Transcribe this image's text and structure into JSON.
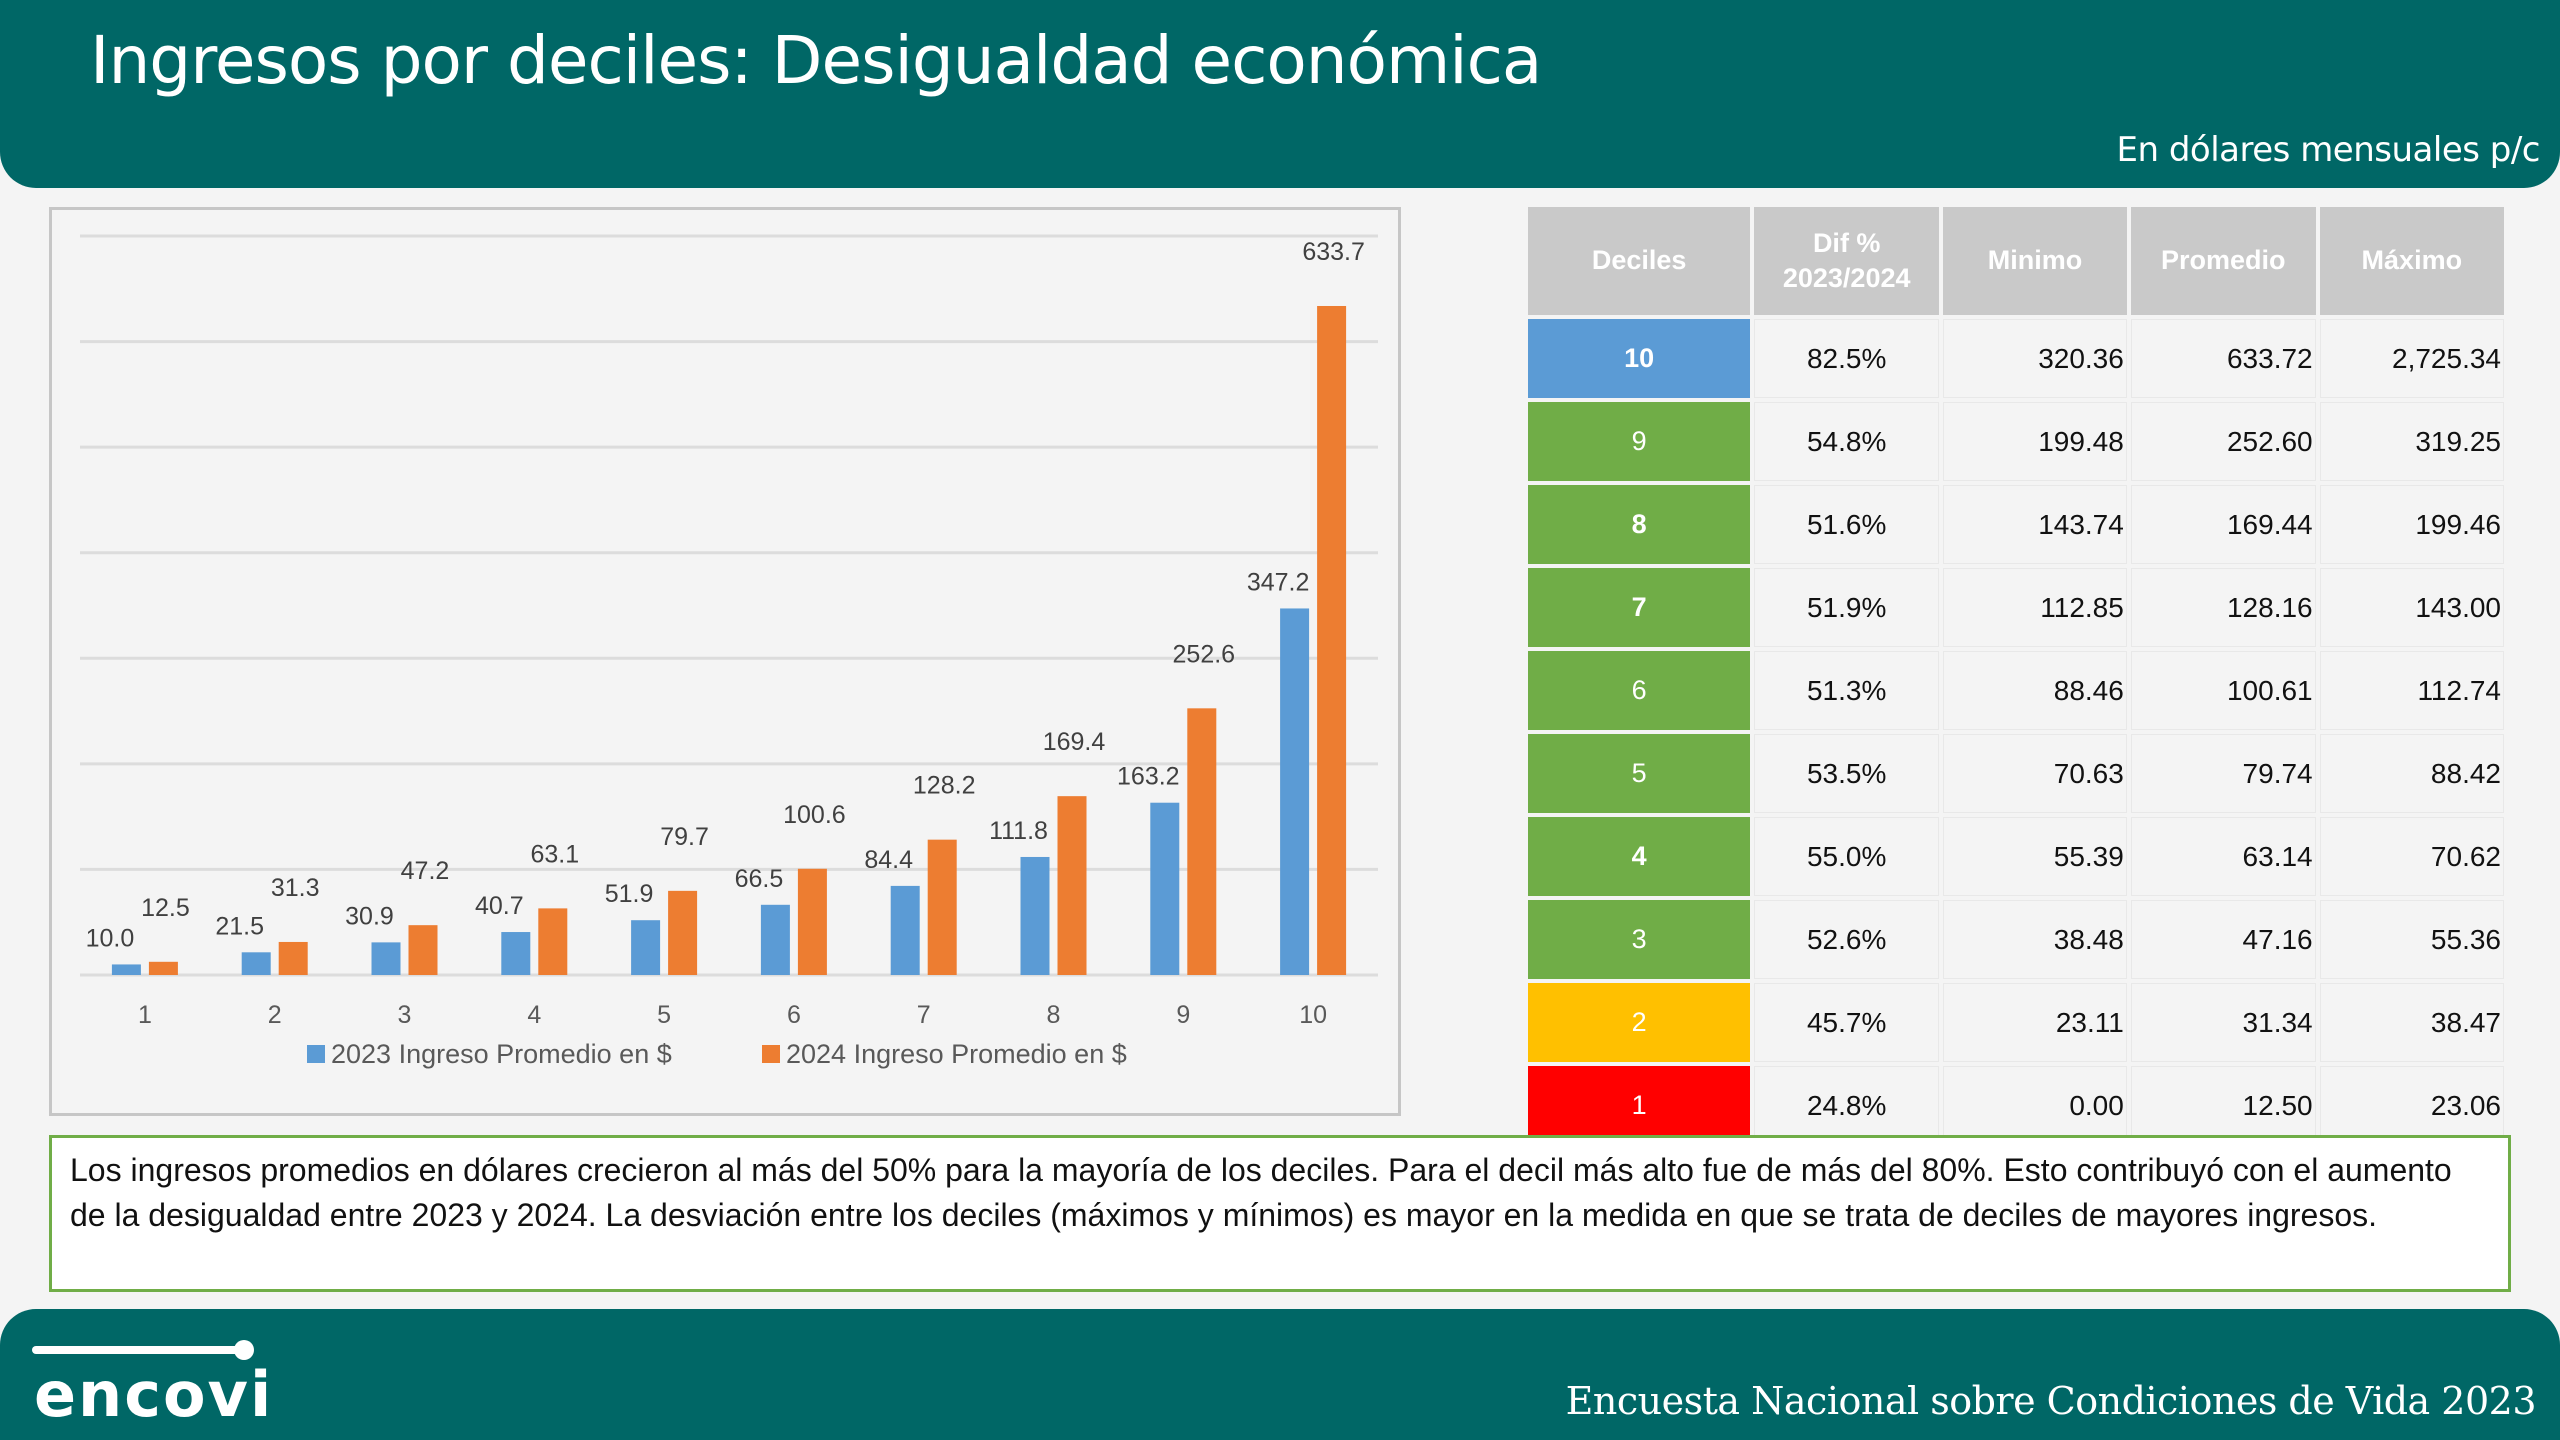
{
  "header": {
    "title": "Ingresos por deciles: Desigualdad económica",
    "subtitle": "En dólares mensuales p/c"
  },
  "colors": {
    "brand_teal": "#006766",
    "series_2023": "#5b9bd5",
    "series_2024": "#ed7d31",
    "decil_top": "#5b9bd5",
    "decil_mid": "#70ad47",
    "decil_low": "#ffc000",
    "decil_bottom": "#ff0000",
    "note_border": "#70ad47"
  },
  "chart_data": {
    "type": "bar",
    "title": "",
    "xlabel": "",
    "ylabel": "",
    "categories": [
      "1",
      "2",
      "3",
      "4",
      "5",
      "6",
      "7",
      "8",
      "9",
      "10"
    ],
    "series": [
      {
        "name": "2023 Ingreso Promedio en $",
        "color": "#5b9bd5",
        "values": [
          10.0,
          21.5,
          30.9,
          40.7,
          51.9,
          66.5,
          84.4,
          111.8,
          163.2,
          347.2
        ],
        "labels": [
          "10.0",
          "21.5",
          "30.9",
          "40.7",
          "51.9",
          "66.5",
          "84.4",
          "111.8",
          "163.2",
          "347.2"
        ]
      },
      {
        "name": "2024 Ingreso Promedio en $",
        "color": "#ed7d31",
        "values": [
          12.5,
          31.3,
          47.2,
          63.1,
          79.7,
          100.6,
          128.2,
          169.4,
          252.6,
          633.7
        ],
        "labels": [
          "12.5",
          "31.3",
          "47.2",
          "63.1",
          "79.7",
          "100.6",
          "128.2",
          "169.4",
          "252.6",
          "633.7"
        ]
      }
    ],
    "ylim": [
      0,
      700
    ],
    "gridlines": [
      0,
      100,
      200,
      300,
      400,
      500,
      600,
      700
    ],
    "y_axis_labels_visible": false,
    "grid": true,
    "legend": "bottom"
  },
  "table": {
    "headers": [
      "Deciles",
      "Dif %\n2023/2024",
      "Minimo",
      "Promedio",
      "Máximo"
    ],
    "header_line1": "Dif %",
    "header_line2": "2023/2024",
    "rows": [
      {
        "decil": "10",
        "dif": "82.5%",
        "min": "320.36",
        "prom": "633.72",
        "max": "2,725.34",
        "color": "#5b9bd5",
        "bold": true
      },
      {
        "decil": "9",
        "dif": "54.8%",
        "min": "199.48",
        "prom": "252.60",
        "max": "319.25",
        "color": "#70ad47",
        "bold": false
      },
      {
        "decil": "8",
        "dif": "51.6%",
        "min": "143.74",
        "prom": "169.44",
        "max": "199.46",
        "color": "#70ad47",
        "bold": true
      },
      {
        "decil": "7",
        "dif": "51.9%",
        "min": "112.85",
        "prom": "128.16",
        "max": "143.00",
        "color": "#70ad47",
        "bold": true
      },
      {
        "decil": "6",
        "dif": "51.3%",
        "min": "88.46",
        "prom": "100.61",
        "max": "112.74",
        "color": "#70ad47",
        "bold": false
      },
      {
        "decil": "5",
        "dif": "53.5%",
        "min": "70.63",
        "prom": "79.74",
        "max": "88.42",
        "color": "#70ad47",
        "bold": false
      },
      {
        "decil": "4",
        "dif": "55.0%",
        "min": "55.39",
        "prom": "63.14",
        "max": "70.62",
        "color": "#70ad47",
        "bold": true
      },
      {
        "decil": "3",
        "dif": "52.6%",
        "min": "38.48",
        "prom": "47.16",
        "max": "55.36",
        "color": "#70ad47",
        "bold": false
      },
      {
        "decil": "2",
        "dif": "45.7%",
        "min": "23.11",
        "prom": "31.34",
        "max": "38.47",
        "color": "#ffc000",
        "bold": false
      },
      {
        "decil": "1",
        "dif": "24.8%",
        "min": "0.00",
        "prom": "12.50",
        "max": "23.06",
        "color": "#ff0000",
        "bold": false
      }
    ]
  },
  "note": {
    "text": "Los ingresos promedios en dólares crecieron al más del 50% para la mayoría de los deciles. Para el decil más alto fue de más del 80%. Esto contribuyó con el aumento de la desigualdad entre 2023 y 2024. La desviación entre los deciles (máximos y mínimos) es mayor en la medida en que se trata de deciles de mayores ingresos."
  },
  "footer": {
    "logo_text": "encovi",
    "logo_icon": "slider-line-icon",
    "text": "Encuesta Nacional sobre Condiciones de Vida 2023"
  }
}
